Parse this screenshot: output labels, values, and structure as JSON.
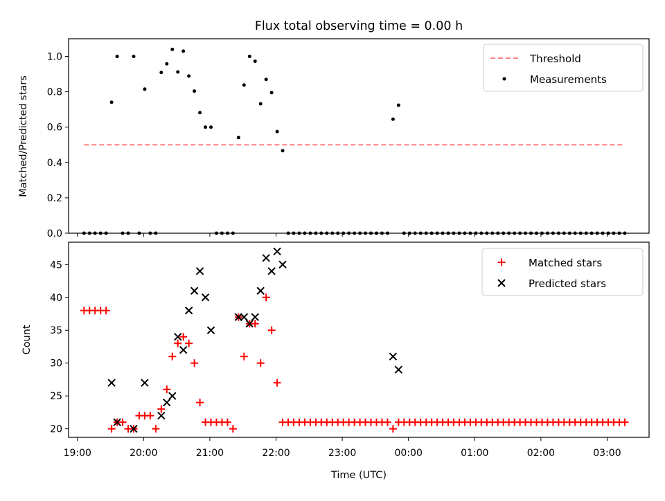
{
  "figure": {
    "title": "Flux total observing time = 0.00 h",
    "xlabel": "Time (UTC)",
    "x_ticks": [
      "19:00",
      "20:00",
      "21:00",
      "22:00",
      "23:00",
      "00:00",
      "01:00",
      "02:00",
      "03:00"
    ]
  },
  "chart_data": [
    {
      "type": "scatter",
      "ylabel": "Matched/Predicted stars",
      "ylim": [
        0,
        1.1
      ],
      "y_ticks": [
        "0.0",
        "0.2",
        "0.4",
        "0.6",
        "0.8",
        "1.0"
      ],
      "xlim": [
        "18:52",
        "03:38"
      ],
      "legend": {
        "placement": "top-right",
        "entries": [
          "Threshold",
          "Measurements"
        ]
      },
      "threshold": {
        "name": "Threshold",
        "value": 0.5,
        "x_start": "19:06",
        "x_end": "03:14",
        "color": "#ff7f7f"
      },
      "series": [
        {
          "name": "Measurements",
          "color": "#000000",
          "x": [
            "19:06",
            "19:11",
            "19:16",
            "19:21",
            "19:26",
            "19:31",
            "19:36",
            "19:41",
            "19:46",
            "19:51",
            "19:56",
            "20:01",
            "20:06",
            "20:11",
            "20:16",
            "20:21",
            "20:26",
            "20:31",
            "20:36",
            "20:41",
            "20:46",
            "20:51",
            "20:56",
            "21:01",
            "21:06",
            "21:11",
            "21:16",
            "21:21",
            "21:26",
            "21:31",
            "21:36",
            "21:41",
            "21:46",
            "21:51",
            "21:56",
            "22:01",
            "22:06",
            "22:11",
            "22:16",
            "22:21",
            "22:26",
            "22:31",
            "22:36",
            "22:41",
            "22:46",
            "22:51",
            "22:56",
            "23:01",
            "23:06",
            "23:11",
            "23:16",
            "23:21",
            "23:26",
            "23:31",
            "23:36",
            "23:41",
            "23:46",
            "23:51",
            "23:56",
            "00:01",
            "00:06",
            "00:11",
            "00:16",
            "00:21",
            "00:26",
            "00:31",
            "00:36",
            "00:41",
            "00:46",
            "00:51",
            "00:56",
            "01:01",
            "01:06",
            "01:11",
            "01:16",
            "01:21",
            "01:26",
            "01:31",
            "01:36",
            "01:41",
            "01:46",
            "01:51",
            "01:56",
            "02:01",
            "02:06",
            "02:11",
            "02:16",
            "02:21",
            "02:26",
            "02:31",
            "02:36",
            "02:41",
            "02:46",
            "02:51",
            "02:56",
            "03:01",
            "03:06",
            "03:11",
            "03:16"
          ],
          "y": [
            0,
            0,
            0,
            0,
            0,
            0.741,
            1,
            0,
            0,
            1,
            0,
            0.815,
            0,
            0,
            0.909,
            0.958,
            1.04,
            0.912,
            1.03,
            0.889,
            0.804,
            0.682,
            0.6,
            0.6,
            0,
            0,
            0,
            0,
            0.541,
            0.838,
            1,
            0.973,
            0.732,
            0.87,
            0.795,
            0.575,
            0.467,
            0,
            0,
            0,
            0,
            0,
            0,
            0,
            0,
            0,
            0,
            0,
            0,
            0,
            0,
            0,
            0,
            0,
            0,
            0,
            0.645,
            0.724,
            0,
            0,
            0,
            0,
            0,
            0,
            0,
            0,
            0,
            0,
            0,
            0,
            0,
            0,
            0,
            0,
            0,
            0,
            0,
            0,
            0,
            0,
            0,
            0,
            0,
            0,
            0,
            0,
            0,
            0,
            0,
            0,
            0,
            0,
            0,
            0,
            0,
            0,
            0,
            0,
            0
          ]
        }
      ]
    },
    {
      "type": "scatter",
      "ylabel": "Count",
      "ylim": [
        18.7,
        48.4
      ],
      "y_ticks": [
        "20",
        "25",
        "30",
        "35",
        "40",
        "45"
      ],
      "xlim": [
        "18:52",
        "03:38"
      ],
      "legend": {
        "placement": "top-right",
        "entries": [
          "Matched stars",
          "Predicted stars"
        ]
      },
      "series": [
        {
          "name": "Matched stars",
          "color": "#ff0000",
          "marker": "plus",
          "x": [
            "19:06",
            "19:11",
            "19:16",
            "19:21",
            "19:26",
            "19:31",
            "19:36",
            "19:41",
            "19:46",
            "19:51",
            "19:56",
            "20:01",
            "20:06",
            "20:11",
            "20:16",
            "20:21",
            "20:26",
            "20:31",
            "20:36",
            "20:41",
            "20:46",
            "20:51",
            "20:56",
            "21:01",
            "21:06",
            "21:11",
            "21:16",
            "21:21",
            "21:26",
            "21:31",
            "21:36",
            "21:41",
            "21:46",
            "21:51",
            "21:56",
            "22:01",
            "22:06",
            "22:11",
            "22:16",
            "22:21",
            "22:26",
            "22:31",
            "22:36",
            "22:41",
            "22:46",
            "22:51",
            "22:56",
            "23:01",
            "23:06",
            "23:11",
            "23:16",
            "23:21",
            "23:26",
            "23:31",
            "23:36",
            "23:41",
            "23:46",
            "23:51",
            "23:56",
            "00:01",
            "00:06",
            "00:11",
            "00:16",
            "00:21",
            "00:26",
            "00:31",
            "00:36",
            "00:41",
            "00:46",
            "00:51",
            "00:56",
            "01:01",
            "01:06",
            "01:11",
            "01:16",
            "01:21",
            "01:26",
            "01:31",
            "01:36",
            "01:41",
            "01:46",
            "01:51",
            "01:56",
            "02:01",
            "02:06",
            "02:11",
            "02:16",
            "02:21",
            "02:26",
            "02:31",
            "02:36",
            "02:41",
            "02:46",
            "02:51",
            "02:56",
            "03:01",
            "03:06",
            "03:11",
            "03:16"
          ],
          "y": [
            38,
            38,
            38,
            38,
            38,
            20,
            21,
            21,
            20,
            20,
            22,
            22,
            22,
            20,
            23,
            26,
            31,
            33,
            34,
            33,
            30,
            24,
            21,
            21,
            21,
            21,
            21,
            20,
            37,
            31,
            36,
            36,
            30,
            40,
            35,
            27,
            21,
            21,
            21,
            21,
            21,
            21,
            21,
            21,
            21,
            21,
            21,
            21,
            21,
            21,
            21,
            21,
            21,
            21,
            21,
            21,
            20,
            21,
            21,
            21,
            21,
            21,
            21,
            21,
            21,
            21,
            21,
            21,
            21,
            21,
            21,
            21,
            21,
            21,
            21,
            21,
            21,
            21,
            21,
            21,
            21,
            21,
            21,
            21,
            21,
            21,
            21,
            21,
            21,
            21,
            21,
            21,
            21,
            21,
            21,
            21,
            21,
            21,
            21
          ]
        },
        {
          "name": "Predicted stars",
          "color": "#000000",
          "marker": "x",
          "x": [
            "19:31",
            "19:36",
            "19:51",
            "20:01",
            "20:16",
            "20:21",
            "20:26",
            "20:31",
            "20:36",
            "20:41",
            "20:46",
            "20:51",
            "20:56",
            "21:01",
            "21:26",
            "21:31",
            "21:36",
            "21:41",
            "21:46",
            "21:51",
            "21:56",
            "22:01",
            "22:06",
            "23:46",
            "23:51"
          ],
          "y": [
            27,
            21,
            20,
            27,
            22,
            24,
            25,
            34,
            32,
            38,
            41,
            44,
            40,
            35,
            37,
            37,
            36,
            37,
            41,
            46,
            44,
            47,
            45,
            31,
            29
          ]
        }
      ]
    }
  ]
}
